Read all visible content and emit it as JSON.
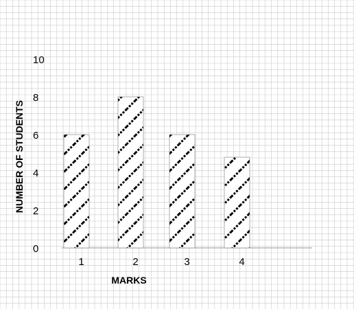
{
  "chart_data": {
    "type": "bar",
    "categories": [
      "1",
      "2",
      "3",
      "4"
    ],
    "values": [
      6,
      8,
      6,
      4.8
    ],
    "xlabel": "MARKS",
    "ylabel": "NUMBER OF STUDENTS",
    "ylim": [
      0,
      10
    ],
    "yticks": [
      "0",
      "2",
      "4",
      "6",
      "8",
      "10"
    ],
    "grid": true,
    "bar_pattern": "diagonal-hatch",
    "colors": {
      "grid": "#c8c8c8",
      "bar_outline": "#777777",
      "hatch": "#000000",
      "background": "#ffffff"
    }
  }
}
